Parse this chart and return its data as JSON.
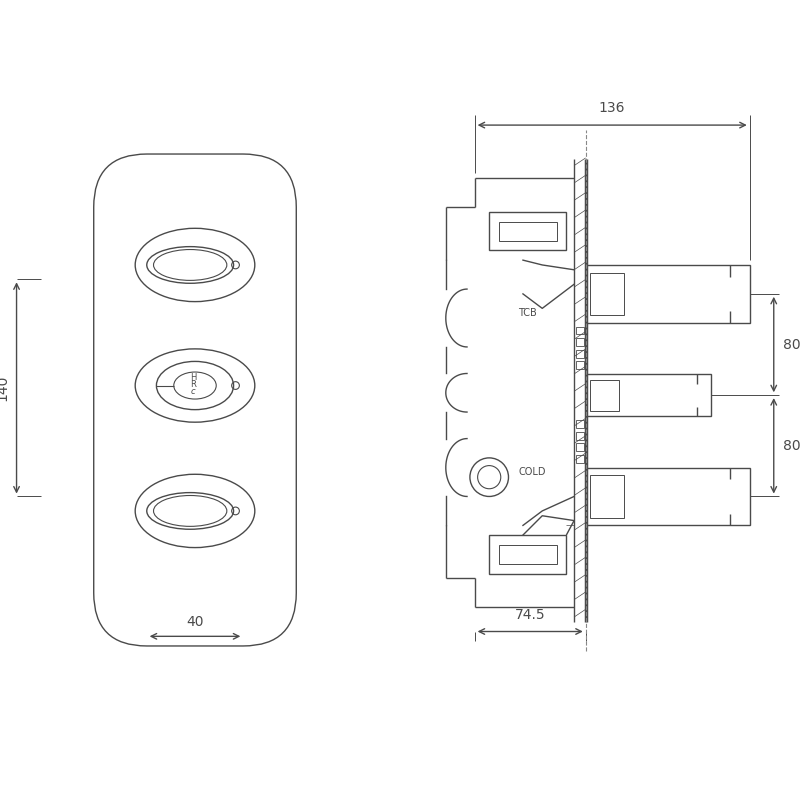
{
  "bg_color": "#ffffff",
  "line_color": "#4a4a4a",
  "line_width": 1.0,
  "fig_width": 8.0,
  "fig_height": 8.0,
  "dim_40": "40",
  "dim_140": "140",
  "dim_74_5": "74.5",
  "dim_80_top": "80",
  "dim_80_bot": "80",
  "dim_136": "136",
  "label_cold": "COLD",
  "label_tcb": "TCB"
}
